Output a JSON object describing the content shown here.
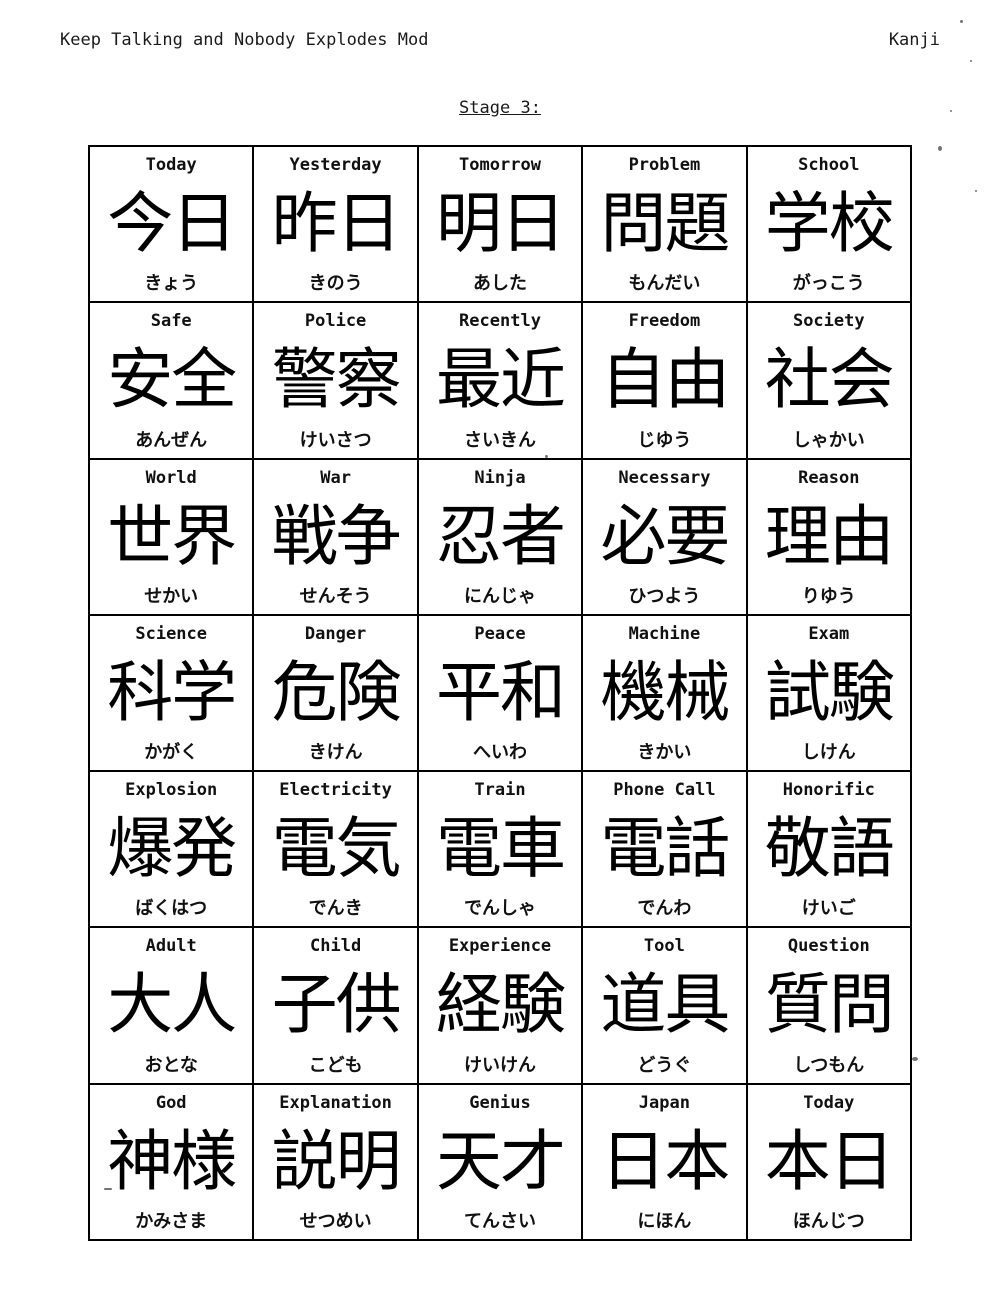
{
  "header": {
    "left": "Keep Talking and Nobody Explodes Mod",
    "right": "Kanji"
  },
  "stage": "Stage 3:",
  "cells": [
    {
      "en": "Today",
      "kanji": "今日",
      "kana": "きょう"
    },
    {
      "en": "Yesterday",
      "kanji": "昨日",
      "kana": "きのう"
    },
    {
      "en": "Tomorrow",
      "kanji": "明日",
      "kana": "あした"
    },
    {
      "en": "Problem",
      "kanji": "問題",
      "kana": "もんだい"
    },
    {
      "en": "School",
      "kanji": "学校",
      "kana": "がっこう"
    },
    {
      "en": "Safe",
      "kanji": "安全",
      "kana": "あんぜん"
    },
    {
      "en": "Police",
      "kanji": "警察",
      "kana": "けいさつ"
    },
    {
      "en": "Recently",
      "kanji": "最近",
      "kana": "さいきん"
    },
    {
      "en": "Freedom",
      "kanji": "自由",
      "kana": "じゆう"
    },
    {
      "en": "Society",
      "kanji": "社会",
      "kana": "しゃかい"
    },
    {
      "en": "World",
      "kanji": "世界",
      "kana": "せかい"
    },
    {
      "en": "War",
      "kanji": "戦争",
      "kana": "せんそう"
    },
    {
      "en": "Ninja",
      "kanji": "忍者",
      "kana": "にんじゃ"
    },
    {
      "en": "Necessary",
      "kanji": "必要",
      "kana": "ひつよう"
    },
    {
      "en": "Reason",
      "kanji": "理由",
      "kana": "りゆう"
    },
    {
      "en": "Science",
      "kanji": "科学",
      "kana": "かがく"
    },
    {
      "en": "Danger",
      "kanji": "危険",
      "kana": "きけん"
    },
    {
      "en": "Peace",
      "kanji": "平和",
      "kana": "へいわ"
    },
    {
      "en": "Machine",
      "kanji": "機械",
      "kana": "きかい"
    },
    {
      "en": "Exam",
      "kanji": "試験",
      "kana": "しけん"
    },
    {
      "en": "Explosion",
      "kanji": "爆発",
      "kana": "ばくはつ"
    },
    {
      "en": "Electricity",
      "kanji": "電気",
      "kana": "でんき"
    },
    {
      "en": "Train",
      "kanji": "電車",
      "kana": "でんしゃ"
    },
    {
      "en": "Phone Call",
      "kanji": "電話",
      "kana": "でんわ"
    },
    {
      "en": "Honorific",
      "kanji": "敬語",
      "kana": "けいご"
    },
    {
      "en": "Adult",
      "kanji": "大人",
      "kana": "おとな"
    },
    {
      "en": "Child",
      "kanji": "子供",
      "kana": "こども"
    },
    {
      "en": "Experience",
      "kanji": "経験",
      "kana": "けいけん"
    },
    {
      "en": "Tool",
      "kanji": "道具",
      "kana": "どうぐ"
    },
    {
      "en": "Question",
      "kanji": "質問",
      "kana": "しつもん"
    },
    {
      "en": "God",
      "kanji": "神様",
      "kana": "かみさま"
    },
    {
      "en": "Explanation",
      "kanji": "説明",
      "kana": "せつめい"
    },
    {
      "en": "Genius",
      "kanji": "天才",
      "kana": "てんさい"
    },
    {
      "en": "Japan",
      "kanji": "日本",
      "kana": "にほん"
    },
    {
      "en": "Today",
      "kanji": "本日",
      "kana": "ほんじつ"
    }
  ]
}
